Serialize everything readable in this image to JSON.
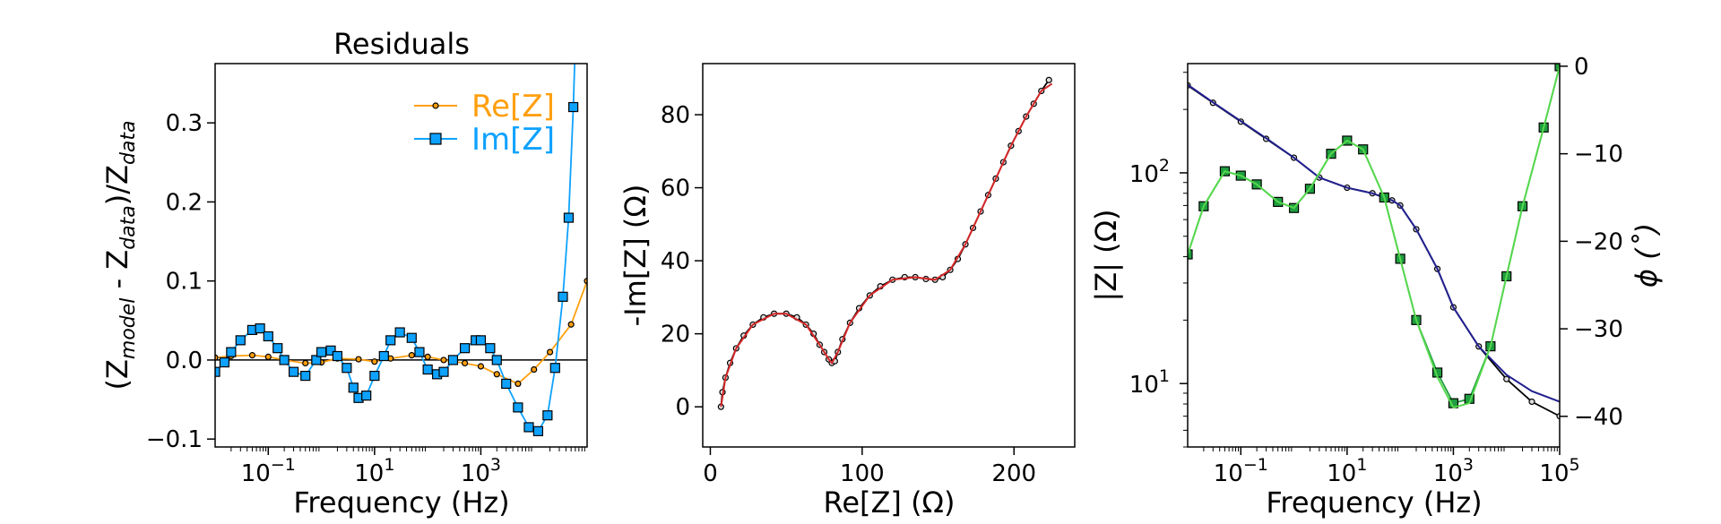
{
  "colors": {
    "re": "#FF9F0E",
    "im": "#0EA2FF",
    "fit_red": "#d62728",
    "magnitude": "#21208F",
    "phase": "#1F9E3F",
    "phase_light": "#56D84E",
    "axis": "#000000"
  },
  "chart_data": [
    {
      "type": "line",
      "title": "Residuals",
      "xlabel": "Frequency (Hz)",
      "xscale": "log",
      "xlim": [
        0.01,
        100000
      ],
      "ylim": [
        -0.11,
        0.375
      ],
      "xticks": [
        {
          "v": 0.1,
          "b": "10",
          "e": "−1"
        },
        {
          "v": 10,
          "b": "10",
          "e": "1"
        },
        {
          "v": 1000,
          "b": "10",
          "e": "3"
        }
      ],
      "yticks": [
        "−0.1",
        "0.0",
        "0.1",
        "0.2",
        "0.3"
      ],
      "ytick_values": [
        -0.1,
        0.0,
        0.1,
        0.2,
        0.3
      ],
      "ylabel_parts": {
        "open": "(Z",
        "sub1": "model",
        "mid": " - Z",
        "sub2": "data",
        "close": ")/Z",
        "sub3": "data"
      },
      "legend_position": "upper right",
      "series": [
        {
          "name": "Re[Z]",
          "marker": "circle",
          "color": "#FF9F0E",
          "points": [
            [
              0.01,
              0.003
            ],
            [
              0.02,
              0.005
            ],
            [
              0.05,
              0.006
            ],
            [
              0.1,
              0.004
            ],
            [
              0.2,
              0.0
            ],
            [
              0.5,
              -0.004
            ],
            [
              1,
              -0.003
            ],
            [
              2,
              0.002
            ],
            [
              5,
              0.001
            ],
            [
              10,
              -0.002
            ],
            [
              20,
              0.002
            ],
            [
              50,
              0.006
            ],
            [
              100,
              0.004
            ],
            [
              200,
              0.0
            ],
            [
              500,
              -0.004
            ],
            [
              1000,
              -0.008
            ],
            [
              2000,
              -0.018
            ],
            [
              5000,
              -0.03
            ],
            [
              10000,
              -0.012
            ],
            [
              20000,
              0.01
            ],
            [
              50000,
              0.045
            ],
            [
              100000,
              0.1
            ]
          ]
        },
        {
          "name": "Im[Z]",
          "marker": "square",
          "color": "#0EA2FF",
          "points": [
            [
              0.01,
              -0.015
            ],
            [
              0.015,
              -0.003
            ],
            [
              0.02,
              0.01
            ],
            [
              0.03,
              0.025
            ],
            [
              0.05,
              0.038
            ],
            [
              0.07,
              0.04
            ],
            [
              0.1,
              0.03
            ],
            [
              0.15,
              0.015
            ],
            [
              0.2,
              0.0
            ],
            [
              0.3,
              -0.015
            ],
            [
              0.5,
              -0.02
            ],
            [
              0.8,
              0.0
            ],
            [
              1,
              0.01
            ],
            [
              1.5,
              0.012
            ],
            [
              2,
              0.005
            ],
            [
              3,
              -0.01
            ],
            [
              4,
              -0.035
            ],
            [
              5,
              -0.048
            ],
            [
              7,
              -0.045
            ],
            [
              10,
              -0.02
            ],
            [
              15,
              0.005
            ],
            [
              20,
              0.025
            ],
            [
              30,
              0.035
            ],
            [
              50,
              0.028
            ],
            [
              70,
              0.01
            ],
            [
              100,
              -0.012
            ],
            [
              150,
              -0.018
            ],
            [
              200,
              -0.015
            ],
            [
              300,
              0.0
            ],
            [
              500,
              0.015
            ],
            [
              800,
              0.025
            ],
            [
              1000,
              0.025
            ],
            [
              1500,
              0.015
            ],
            [
              2000,
              0.0
            ],
            [
              3000,
              -0.03
            ],
            [
              5000,
              -0.06
            ],
            [
              8000,
              -0.085
            ],
            [
              12000,
              -0.09
            ],
            [
              18000,
              -0.07
            ],
            [
              25000,
              -0.01
            ],
            [
              35000,
              0.08
            ],
            [
              45000,
              0.18
            ],
            [
              55000,
              0.32
            ],
            [
              60000,
              0.4
            ]
          ]
        }
      ]
    },
    {
      "type": "scatter",
      "title": "",
      "xlabel": "Re[Z] (Ω)",
      "ylabel": "-Im[Z] (Ω)",
      "xlim": [
        -5,
        240
      ],
      "ylim": [
        -11,
        94
      ],
      "xticks": [
        "0",
        "100",
        "200"
      ],
      "xtick_values": [
        0,
        100,
        200
      ],
      "yticks": [
        "0",
        "20",
        "40",
        "60",
        "80"
      ],
      "ytick_values": [
        0,
        20,
        40,
        60,
        80
      ],
      "series": [
        {
          "name": "",
          "marker": "circle",
          "color": "#000000",
          "points": [
            [
              7,
              0
            ],
            [
              8,
              4
            ],
            [
              10,
              8
            ],
            [
              13,
              12
            ],
            [
              17,
              16
            ],
            [
              22,
              19.5
            ],
            [
              28,
              22.5
            ],
            [
              35,
              24.5
            ],
            [
              42,
              25.5
            ],
            [
              50,
              25.5
            ],
            [
              57,
              24.5
            ],
            [
              63,
              22.5
            ],
            [
              68,
              20
            ],
            [
              72,
              17
            ],
            [
              75,
              15
            ],
            [
              78,
              13
            ],
            [
              80,
              12
            ],
            [
              82,
              12.5
            ],
            [
              84,
              15
            ],
            [
              87,
              18.5
            ],
            [
              92,
              23
            ],
            [
              98,
              27
            ],
            [
              105,
              30.5
            ],
            [
              112,
              33
            ],
            [
              120,
              34.8
            ],
            [
              128,
              35.5
            ],
            [
              135,
              35.5
            ],
            [
              142,
              35
            ],
            [
              148,
              34.8
            ],
            [
              153,
              35.5
            ],
            [
              158,
              37.5
            ],
            [
              163,
              40.5
            ],
            [
              168,
              44.5
            ],
            [
              173,
              49
            ],
            [
              178,
              53.5
            ],
            [
              183,
              58
            ],
            [
              188,
              62.5
            ],
            [
              193,
              67
            ],
            [
              198,
              71.5
            ],
            [
              203,
              75.5
            ],
            [
              208,
              79.5
            ],
            [
              213,
              83
            ],
            [
              218,
              86.5
            ],
            [
              223,
              89.5
            ]
          ]
        },
        {
          "name": "",
          "marker": "line",
          "color": "#d62728",
          "points": [
            [
              7,
              0
            ],
            [
              10,
              8
            ],
            [
              17,
              16
            ],
            [
              28,
              22.5
            ],
            [
              42,
              25.5
            ],
            [
              50,
              25.5
            ],
            [
              63,
              22.5
            ],
            [
              72,
              17
            ],
            [
              78,
              13
            ],
            [
              80,
              12
            ],
            [
              84,
              15
            ],
            [
              92,
              23
            ],
            [
              105,
              30.5
            ],
            [
              120,
              34.8
            ],
            [
              135,
              35.5
            ],
            [
              148,
              34.8
            ],
            [
              158,
              37.5
            ],
            [
              168,
              44.5
            ],
            [
              178,
              53.5
            ],
            [
              188,
              62.5
            ],
            [
              198,
              71.5
            ],
            [
              208,
              79.5
            ],
            [
              218,
              86.5
            ],
            [
              225,
              88.5
            ]
          ]
        }
      ]
    },
    {
      "type": "line",
      "title": "",
      "xlabel": "Frequency (Hz)",
      "xscale": "log",
      "xlim": [
        0.01,
        100000
      ],
      "xticks": [
        {
          "v": 0.1,
          "b": "10",
          "e": "−1"
        },
        {
          "v": 10,
          "b": "10",
          "e": "1"
        },
        {
          "v": 1000,
          "b": "10",
          "e": "3"
        },
        {
          "v": 100000,
          "b": "10",
          "e": "5"
        }
      ],
      "left_axis": {
        "label": "|Z| (Ω)",
        "scale": "log",
        "ylim": [
          5,
          330
        ],
        "yticks": [
          {
            "v": 10,
            "b": "10",
            "e": "1"
          },
          {
            "v": 100,
            "b": "10",
            "e": "2"
          }
        ]
      },
      "right_axis": {
        "label": "ϕ (˚)",
        "ylim": [
          -43.5,
          0.3
        ],
        "yticks": [
          "0",
          "−10",
          "−20",
          "−30",
          "−40"
        ],
        "ytick_values": [
          0,
          -10,
          -20,
          -30,
          -40
        ]
      },
      "series": [
        {
          "name": "",
          "axis": "left",
          "marker": "circle",
          "color": "#000000",
          "points": [
            [
              0.01,
              260
            ],
            [
              0.03,
              215
            ],
            [
              0.1,
              175
            ],
            [
              0.3,
              145
            ],
            [
              1,
              118
            ],
            [
              3,
              95
            ],
            [
              10,
              85
            ],
            [
              30,
              80
            ],
            [
              70,
              74
            ],
            [
              100,
              70
            ],
            [
              200,
              54
            ],
            [
              500,
              35
            ],
            [
              1000,
              23
            ],
            [
              3000,
              15
            ],
            [
              10000,
              10.5
            ],
            [
              30000,
              8.2
            ],
            [
              100000,
              7.0
            ]
          ]
        },
        {
          "name": "",
          "axis": "left",
          "marker": "line",
          "color": "#21208F",
          "points": [
            [
              0.01,
              262
            ],
            [
              0.03,
              216
            ],
            [
              0.1,
              176
            ],
            [
              0.3,
              146
            ],
            [
              1,
              118
            ],
            [
              3,
              95
            ],
            [
              10,
              85
            ],
            [
              30,
              80
            ],
            [
              70,
              74
            ],
            [
              100,
              70
            ],
            [
              200,
              54
            ],
            [
              500,
              35
            ],
            [
              1000,
              23
            ],
            [
              3000,
              15
            ],
            [
              10000,
              11
            ],
            [
              30000,
              9.2
            ],
            [
              100000,
              8.2
            ]
          ]
        },
        {
          "name": "",
          "axis": "right",
          "marker": "square",
          "color": "#1F9E3F",
          "points": [
            [
              0.01,
              -21.5
            ],
            [
              0.02,
              -16
            ],
            [
              0.05,
              -12
            ],
            [
              0.1,
              -12.5
            ],
            [
              0.2,
              -13.5
            ],
            [
              0.5,
              -15.5
            ],
            [
              1,
              -16.2
            ],
            [
              2,
              -14
            ],
            [
              5,
              -10
            ],
            [
              10,
              -8.5
            ],
            [
              20,
              -9.5
            ],
            [
              50,
              -15
            ],
            [
              100,
              -22
            ],
            [
              200,
              -29
            ],
            [
              500,
              -35
            ],
            [
              1000,
              -38.5
            ],
            [
              2000,
              -38
            ],
            [
              5000,
              -32
            ],
            [
              10000,
              -24
            ],
            [
              20000,
              -16
            ],
            [
              50000,
              -7
            ],
            [
              100000,
              0
            ]
          ]
        },
        {
          "name": "",
          "axis": "right",
          "marker": "line",
          "color": "#56D84E",
          "points": [
            [
              0.01,
              -21.5
            ],
            [
              0.02,
              -16
            ],
            [
              0.05,
              -12
            ],
            [
              0.1,
              -12.5
            ],
            [
              0.2,
              -13.5
            ],
            [
              0.5,
              -15.5
            ],
            [
              1,
              -16.2
            ],
            [
              2,
              -14
            ],
            [
              5,
              -10
            ],
            [
              10,
              -8.5
            ],
            [
              20,
              -9.5
            ],
            [
              50,
              -15
            ],
            [
              100,
              -22
            ],
            [
              200,
              -29
            ],
            [
              500,
              -35.5
            ],
            [
              1000,
              -39
            ],
            [
              2000,
              -38.5
            ],
            [
              5000,
              -32
            ],
            [
              10000,
              -24
            ],
            [
              20000,
              -16
            ],
            [
              50000,
              -7
            ],
            [
              100000,
              0
            ]
          ]
        }
      ]
    }
  ]
}
